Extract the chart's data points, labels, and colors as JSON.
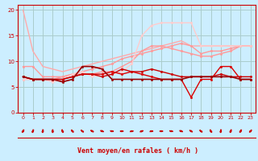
{
  "bg_color": "#cceeff",
  "grid_color": "#aacccc",
  "xlabel": "Vent moyen/en rafales ( km/h )",
  "xlabel_color": "#cc0000",
  "tick_color": "#cc0000",
  "axis_color": "#cc0000",
  "xlim": [
    -0.5,
    23.5
  ],
  "ylim": [
    0,
    21
  ],
  "yticks": [
    0,
    5,
    10,
    15,
    20
  ],
  "xticks": [
    0,
    1,
    2,
    3,
    4,
    5,
    6,
    7,
    8,
    9,
    10,
    11,
    12,
    13,
    14,
    15,
    16,
    17,
    18,
    19,
    20,
    21,
    22,
    23
  ],
  "lines": [
    {
      "x": [
        0,
        1,
        2,
        3,
        4,
        5,
        6,
        7,
        8,
        9,
        10,
        11,
        12,
        13,
        14,
        15,
        16,
        17,
        18,
        19,
        20,
        21,
        22,
        23
      ],
      "y": [
        20,
        12,
        9,
        8.5,
        8,
        8.5,
        9,
        9.5,
        10,
        10.5,
        11,
        11.5,
        12,
        12.5,
        13,
        13.5,
        14,
        13,
        13,
        13,
        13,
        13,
        13,
        13
      ],
      "color": "#ffaaaa",
      "lw": 1.0,
      "marker": null
    },
    {
      "x": [
        0,
        1,
        2,
        3,
        4,
        5,
        6,
        7,
        8,
        9,
        10,
        11,
        12,
        13,
        14,
        15,
        16,
        17,
        18,
        19,
        20,
        21,
        22,
        23
      ],
      "y": [
        9,
        9,
        7,
        7,
        7,
        7.5,
        8,
        8.5,
        9,
        9.5,
        10.5,
        11,
        11.5,
        12,
        12.5,
        13,
        13.5,
        13,
        11.5,
        12,
        12,
        12.5,
        13,
        13
      ],
      "color": "#ff9999",
      "lw": 1.0,
      "marker": "o",
      "ms": 1.8
    },
    {
      "x": [
        0,
        1,
        2,
        3,
        4,
        5,
        6,
        7,
        8,
        9,
        10,
        11,
        12,
        13,
        14,
        15,
        16,
        17,
        18,
        19,
        20,
        21,
        22,
        23
      ],
      "y": [
        6.5,
        6.5,
        6.5,
        6.5,
        7,
        7.5,
        7.5,
        7.5,
        8,
        8,
        9,
        10,
        12,
        13,
        13,
        12.5,
        12,
        11.5,
        11,
        11,
        11.5,
        12,
        13,
        13
      ],
      "color": "#ff9999",
      "lw": 1.0,
      "marker": "o",
      "ms": 1.8
    },
    {
      "x": [
        0,
        1,
        2,
        3,
        4,
        5,
        6,
        7,
        8,
        9,
        10,
        11,
        12,
        13,
        14,
        15,
        16,
        17,
        18,
        19,
        20,
        21,
        22,
        23
      ],
      "y": [
        6.5,
        6.5,
        6.5,
        6,
        6.5,
        7.5,
        8,
        7,
        7.5,
        7.5,
        8,
        9.5,
        15,
        17,
        17.5,
        17.5,
        17.5,
        17.5,
        13,
        13,
        13,
        13,
        13,
        13
      ],
      "color": "#ffcccc",
      "lw": 1.0,
      "marker": "o",
      "ms": 1.8
    },
    {
      "x": [
        0,
        1,
        2,
        3,
        4,
        5,
        6,
        7,
        8,
        9,
        10,
        11,
        12,
        13,
        14,
        15,
        16,
        17,
        18,
        19,
        20,
        21,
        22,
        23
      ],
      "y": [
        7,
        6.5,
        6.5,
        6.5,
        6.5,
        7,
        7.5,
        7.5,
        7.5,
        8,
        7.5,
        8,
        7.5,
        7,
        6.5,
        6.5,
        6.5,
        3,
        6.5,
        6.5,
        9,
        9,
        6.5,
        6.5
      ],
      "color": "#dd0000",
      "lw": 1.0,
      "marker": "o",
      "ms": 1.8
    },
    {
      "x": [
        0,
        1,
        2,
        3,
        4,
        5,
        6,
        7,
        8,
        9,
        10,
        11,
        12,
        13,
        14,
        15,
        16,
        17,
        18,
        19,
        20,
        21,
        22,
        23
      ],
      "y": [
        7,
        6.5,
        6.5,
        6.5,
        6.5,
        7,
        7.5,
        7.5,
        7,
        7.5,
        8.5,
        8,
        8,
        8.5,
        8,
        7.5,
        7,
        7,
        7,
        7,
        7.5,
        7,
        7,
        7
      ],
      "color": "#cc0000",
      "lw": 1.0,
      "marker": "o",
      "ms": 1.8
    },
    {
      "x": [
        0,
        1,
        2,
        3,
        4,
        5,
        6,
        7,
        8,
        9,
        10,
        11,
        12,
        13,
        14,
        15,
        16,
        17,
        18,
        19,
        20,
        21,
        22,
        23
      ],
      "y": [
        7,
        6.5,
        6.5,
        6.5,
        6,
        6.5,
        9,
        9,
        8.5,
        6.5,
        6.5,
        6.5,
        6.5,
        6.5,
        6.5,
        6.5,
        6.5,
        7,
        7,
        7,
        7,
        7,
        6.5,
        6.5
      ],
      "color": "#990000",
      "lw": 1.2,
      "marker": "o",
      "ms": 1.8
    }
  ],
  "arrow_angles": [
    210,
    200,
    190,
    180,
    160,
    140,
    130,
    120,
    110,
    100,
    90,
    80,
    70,
    80,
    90,
    100,
    110,
    120,
    130,
    150,
    190,
    200,
    210,
    220
  ]
}
